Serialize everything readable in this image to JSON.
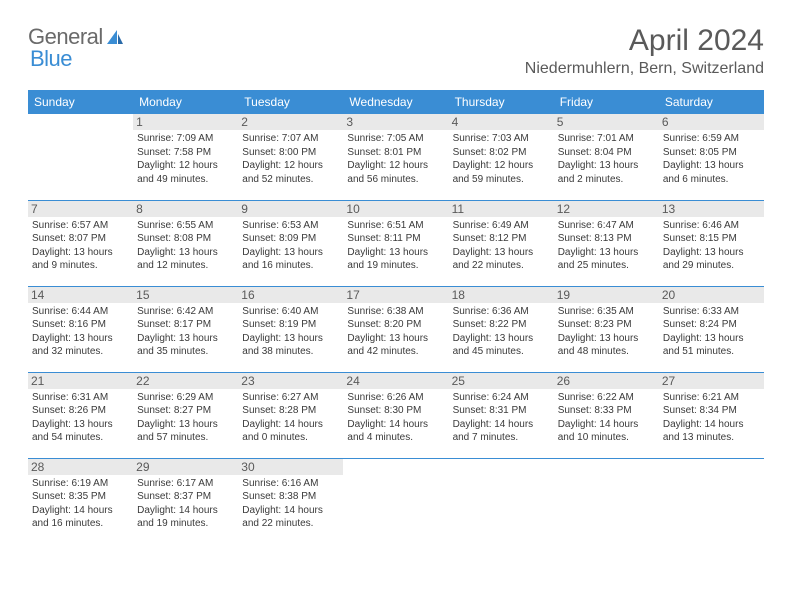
{
  "brand": {
    "general": "General",
    "blue": "Blue"
  },
  "title": "April 2024",
  "location": "Niedermuhlern, Bern, Switzerland",
  "colors": {
    "header_bg": "#3a8dd4",
    "header_fg": "#ffffff",
    "daynum_bg": "#e9e9e9",
    "border": "#3a8dd4",
    "text": "#3a3a3a",
    "title_text": "#5a5a5a"
  },
  "weekdays": [
    "Sunday",
    "Monday",
    "Tuesday",
    "Wednesday",
    "Thursday",
    "Friday",
    "Saturday"
  ],
  "weeks": [
    [
      {
        "day": "",
        "sunrise": "",
        "sunset": "",
        "daylight": ""
      },
      {
        "day": "1",
        "sunrise": "Sunrise: 7:09 AM",
        "sunset": "Sunset: 7:58 PM",
        "daylight": "Daylight: 12 hours and 49 minutes."
      },
      {
        "day": "2",
        "sunrise": "Sunrise: 7:07 AM",
        "sunset": "Sunset: 8:00 PM",
        "daylight": "Daylight: 12 hours and 52 minutes."
      },
      {
        "day": "3",
        "sunrise": "Sunrise: 7:05 AM",
        "sunset": "Sunset: 8:01 PM",
        "daylight": "Daylight: 12 hours and 56 minutes."
      },
      {
        "day": "4",
        "sunrise": "Sunrise: 7:03 AM",
        "sunset": "Sunset: 8:02 PM",
        "daylight": "Daylight: 12 hours and 59 minutes."
      },
      {
        "day": "5",
        "sunrise": "Sunrise: 7:01 AM",
        "sunset": "Sunset: 8:04 PM",
        "daylight": "Daylight: 13 hours and 2 minutes."
      },
      {
        "day": "6",
        "sunrise": "Sunrise: 6:59 AM",
        "sunset": "Sunset: 8:05 PM",
        "daylight": "Daylight: 13 hours and 6 minutes."
      }
    ],
    [
      {
        "day": "7",
        "sunrise": "Sunrise: 6:57 AM",
        "sunset": "Sunset: 8:07 PM",
        "daylight": "Daylight: 13 hours and 9 minutes."
      },
      {
        "day": "8",
        "sunrise": "Sunrise: 6:55 AM",
        "sunset": "Sunset: 8:08 PM",
        "daylight": "Daylight: 13 hours and 12 minutes."
      },
      {
        "day": "9",
        "sunrise": "Sunrise: 6:53 AM",
        "sunset": "Sunset: 8:09 PM",
        "daylight": "Daylight: 13 hours and 16 minutes."
      },
      {
        "day": "10",
        "sunrise": "Sunrise: 6:51 AM",
        "sunset": "Sunset: 8:11 PM",
        "daylight": "Daylight: 13 hours and 19 minutes."
      },
      {
        "day": "11",
        "sunrise": "Sunrise: 6:49 AM",
        "sunset": "Sunset: 8:12 PM",
        "daylight": "Daylight: 13 hours and 22 minutes."
      },
      {
        "day": "12",
        "sunrise": "Sunrise: 6:47 AM",
        "sunset": "Sunset: 8:13 PM",
        "daylight": "Daylight: 13 hours and 25 minutes."
      },
      {
        "day": "13",
        "sunrise": "Sunrise: 6:46 AM",
        "sunset": "Sunset: 8:15 PM",
        "daylight": "Daylight: 13 hours and 29 minutes."
      }
    ],
    [
      {
        "day": "14",
        "sunrise": "Sunrise: 6:44 AM",
        "sunset": "Sunset: 8:16 PM",
        "daylight": "Daylight: 13 hours and 32 minutes."
      },
      {
        "day": "15",
        "sunrise": "Sunrise: 6:42 AM",
        "sunset": "Sunset: 8:17 PM",
        "daylight": "Daylight: 13 hours and 35 minutes."
      },
      {
        "day": "16",
        "sunrise": "Sunrise: 6:40 AM",
        "sunset": "Sunset: 8:19 PM",
        "daylight": "Daylight: 13 hours and 38 minutes."
      },
      {
        "day": "17",
        "sunrise": "Sunrise: 6:38 AM",
        "sunset": "Sunset: 8:20 PM",
        "daylight": "Daylight: 13 hours and 42 minutes."
      },
      {
        "day": "18",
        "sunrise": "Sunrise: 6:36 AM",
        "sunset": "Sunset: 8:22 PM",
        "daylight": "Daylight: 13 hours and 45 minutes."
      },
      {
        "day": "19",
        "sunrise": "Sunrise: 6:35 AM",
        "sunset": "Sunset: 8:23 PM",
        "daylight": "Daylight: 13 hours and 48 minutes."
      },
      {
        "day": "20",
        "sunrise": "Sunrise: 6:33 AM",
        "sunset": "Sunset: 8:24 PM",
        "daylight": "Daylight: 13 hours and 51 minutes."
      }
    ],
    [
      {
        "day": "21",
        "sunrise": "Sunrise: 6:31 AM",
        "sunset": "Sunset: 8:26 PM",
        "daylight": "Daylight: 13 hours and 54 minutes."
      },
      {
        "day": "22",
        "sunrise": "Sunrise: 6:29 AM",
        "sunset": "Sunset: 8:27 PM",
        "daylight": "Daylight: 13 hours and 57 minutes."
      },
      {
        "day": "23",
        "sunrise": "Sunrise: 6:27 AM",
        "sunset": "Sunset: 8:28 PM",
        "daylight": "Daylight: 14 hours and 0 minutes."
      },
      {
        "day": "24",
        "sunrise": "Sunrise: 6:26 AM",
        "sunset": "Sunset: 8:30 PM",
        "daylight": "Daylight: 14 hours and 4 minutes."
      },
      {
        "day": "25",
        "sunrise": "Sunrise: 6:24 AM",
        "sunset": "Sunset: 8:31 PM",
        "daylight": "Daylight: 14 hours and 7 minutes."
      },
      {
        "day": "26",
        "sunrise": "Sunrise: 6:22 AM",
        "sunset": "Sunset: 8:33 PM",
        "daylight": "Daylight: 14 hours and 10 minutes."
      },
      {
        "day": "27",
        "sunrise": "Sunrise: 6:21 AM",
        "sunset": "Sunset: 8:34 PM",
        "daylight": "Daylight: 14 hours and 13 minutes."
      }
    ],
    [
      {
        "day": "28",
        "sunrise": "Sunrise: 6:19 AM",
        "sunset": "Sunset: 8:35 PM",
        "daylight": "Daylight: 14 hours and 16 minutes."
      },
      {
        "day": "29",
        "sunrise": "Sunrise: 6:17 AM",
        "sunset": "Sunset: 8:37 PM",
        "daylight": "Daylight: 14 hours and 19 minutes."
      },
      {
        "day": "30",
        "sunrise": "Sunrise: 6:16 AM",
        "sunset": "Sunset: 8:38 PM",
        "daylight": "Daylight: 14 hours and 22 minutes."
      },
      {
        "day": "",
        "sunrise": "",
        "sunset": "",
        "daylight": ""
      },
      {
        "day": "",
        "sunrise": "",
        "sunset": "",
        "daylight": ""
      },
      {
        "day": "",
        "sunrise": "",
        "sunset": "",
        "daylight": ""
      },
      {
        "day": "",
        "sunrise": "",
        "sunset": "",
        "daylight": ""
      }
    ]
  ]
}
